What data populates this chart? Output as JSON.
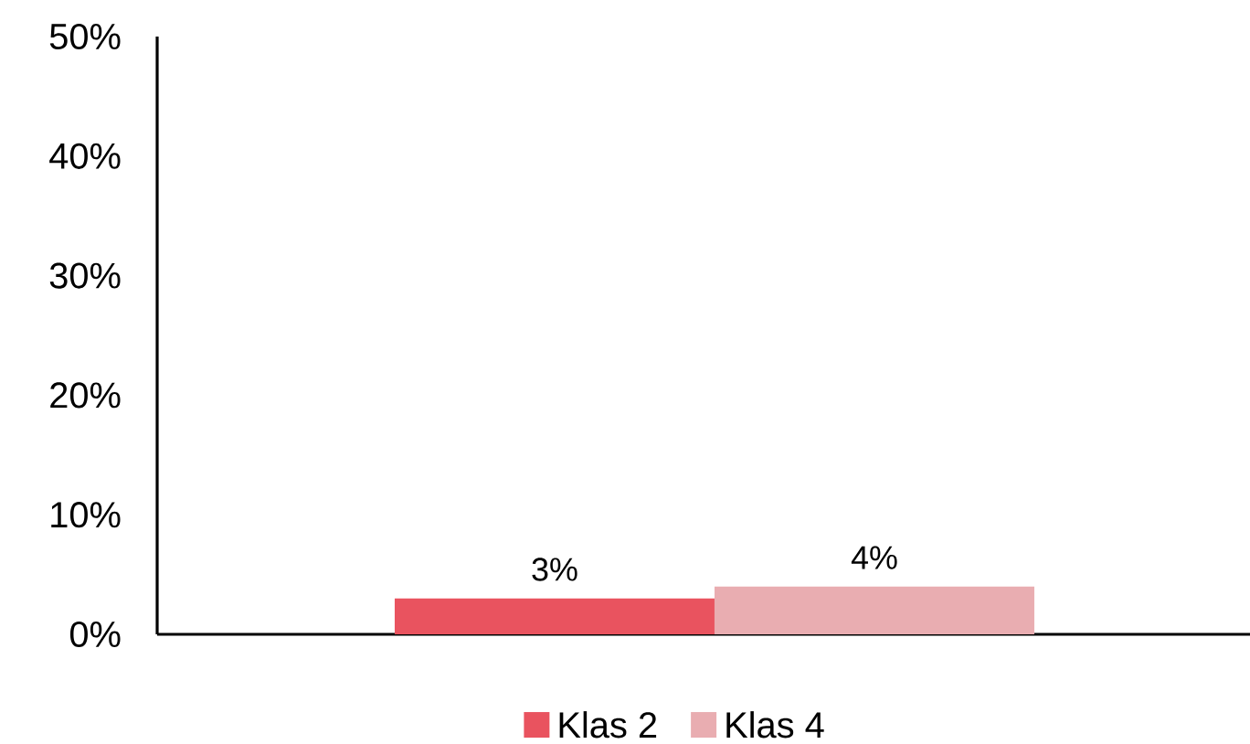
{
  "chart_data": {
    "type": "bar",
    "categories": [
      null
    ],
    "series": [
      {
        "name": "Klas 2",
        "color": "#e9535f",
        "values": [
          3
        ],
        "value_labels": [
          "3%"
        ]
      },
      {
        "name": "Klas 4",
        "color": "#e9adb1",
        "values": [
          4
        ],
        "value_labels": [
          "4%"
        ]
      }
    ],
    "ylim": [
      0,
      50
    ],
    "yticks": [
      {
        "value": 0,
        "label": "0%"
      },
      {
        "value": 10,
        "label": "10%"
      },
      {
        "value": 20,
        "label": "20%"
      },
      {
        "value": 30,
        "label": "30%"
      },
      {
        "value": 40,
        "label": "40%"
      },
      {
        "value": 50,
        "label": "50%"
      }
    ],
    "legend": "bottom"
  }
}
